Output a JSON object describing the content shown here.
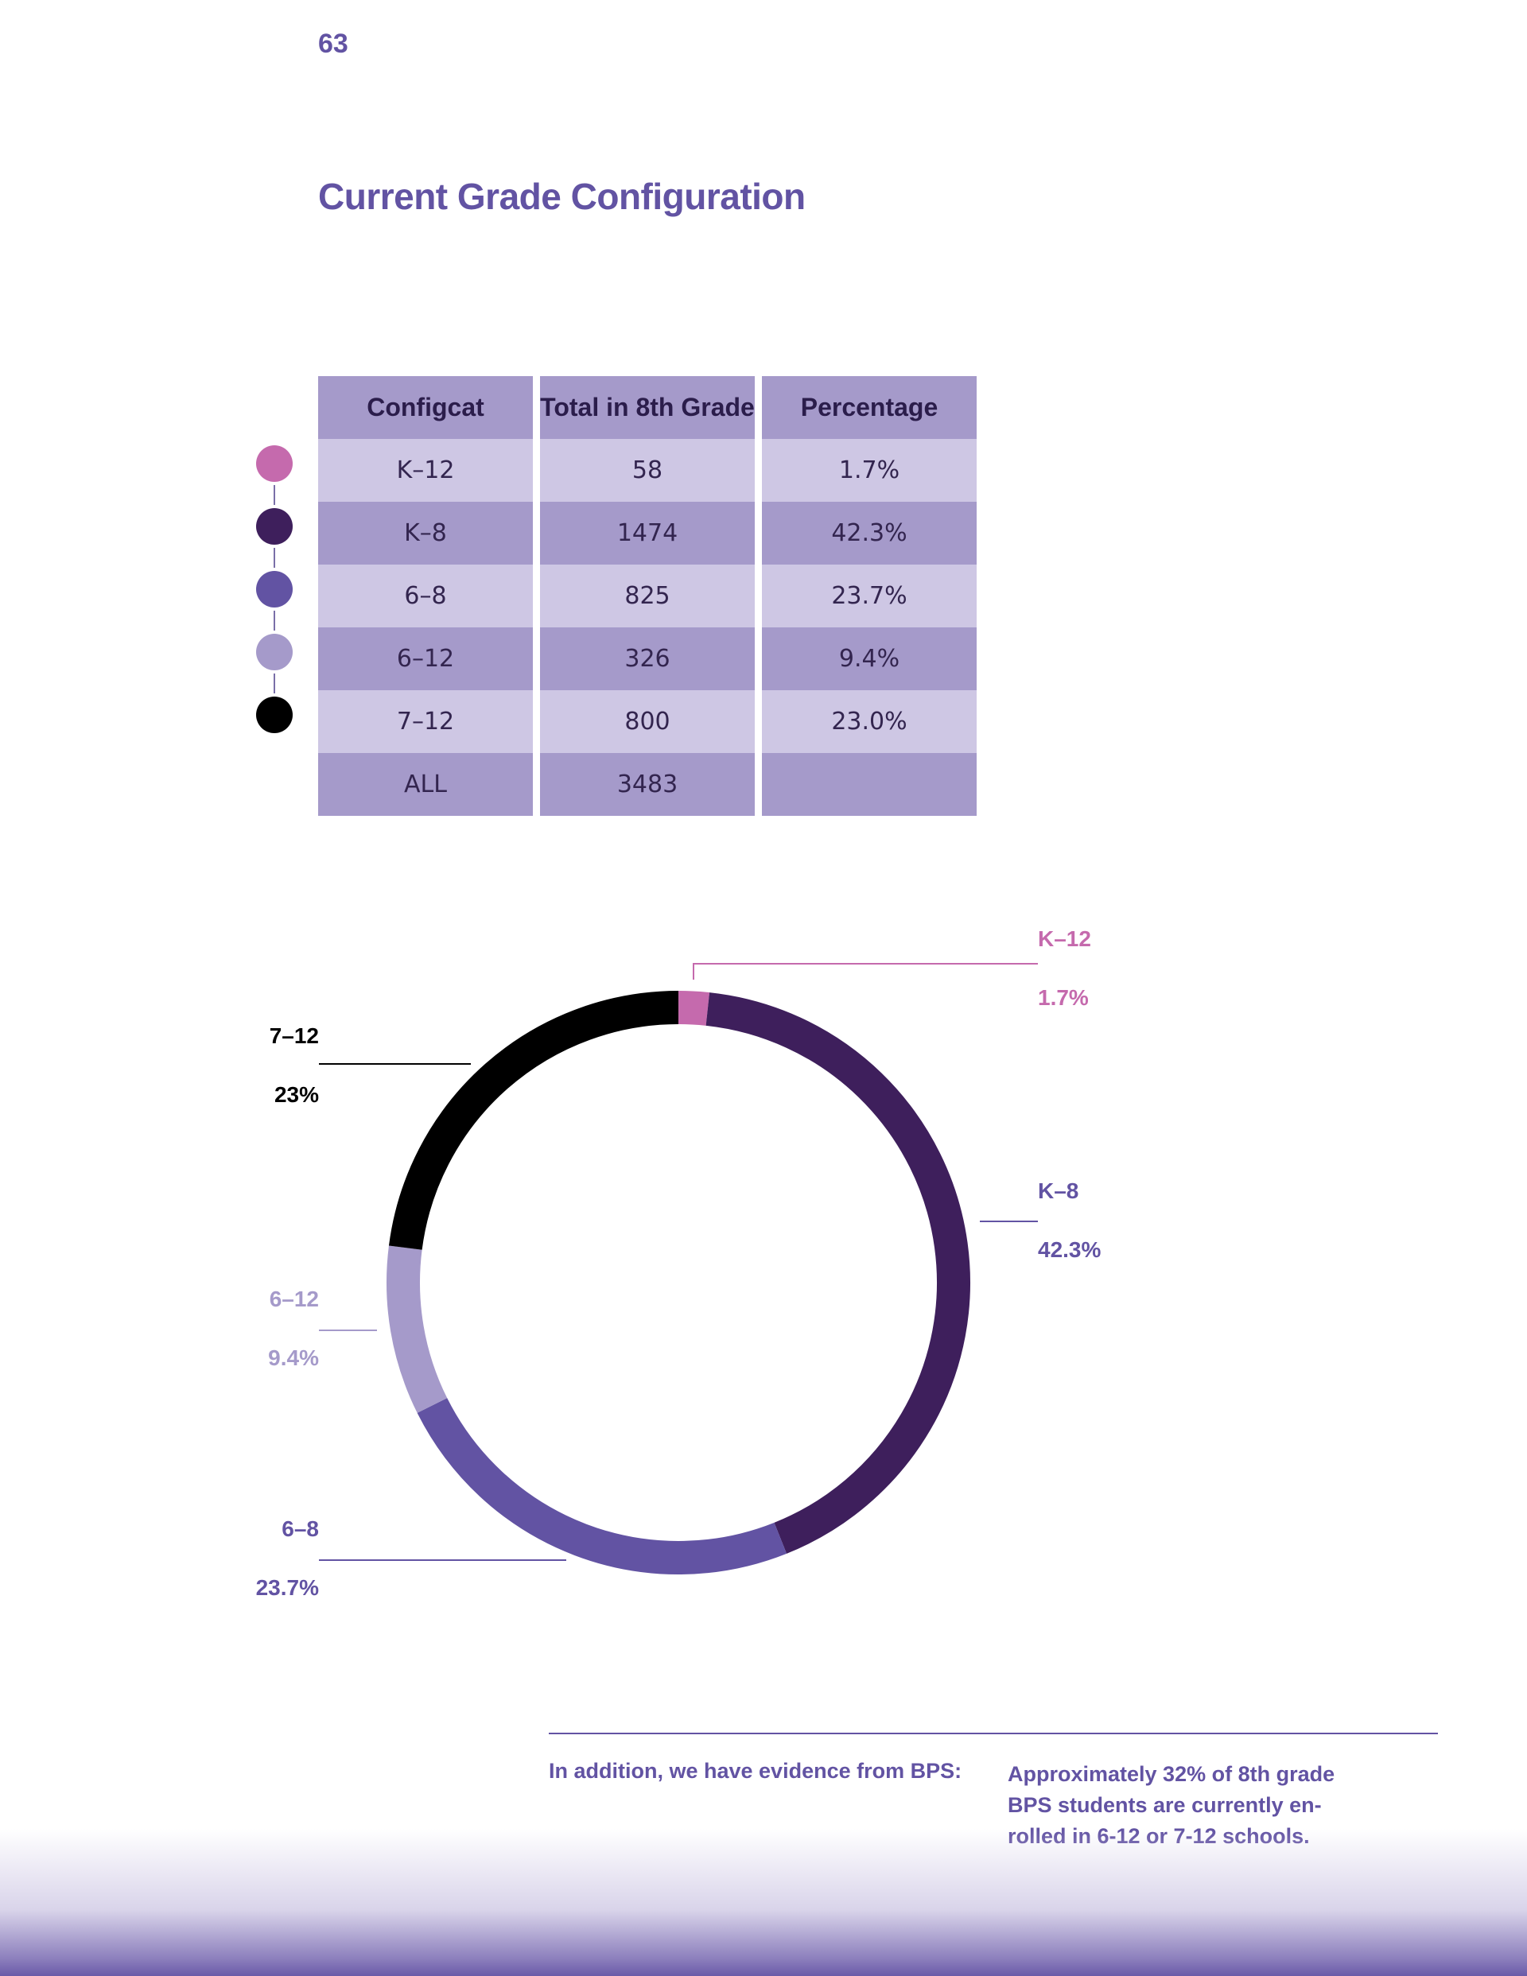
{
  "page": {
    "number": "63",
    "title": "Current Grade Configuration"
  },
  "table": {
    "headers": [
      "Configcat",
      "Total in 8th Grade",
      "Percentage"
    ],
    "rows": [
      {
        "config": "K–12",
        "total": "58",
        "pct": "1.7%",
        "color": "#c56aad"
      },
      {
        "config": "K–8",
        "total": "1474",
        "pct": "42.3%",
        "color": "#3e1f5c"
      },
      {
        "config": "6–8",
        "total": "825",
        "pct": "23.7%",
        "color": "#6253a3"
      },
      {
        "config": "6–12",
        "total": "326",
        "pct": "9.4%",
        "color": "#a59aca"
      },
      {
        "config": "7–12",
        "total": "800",
        "pct": "23.0%",
        "color": "#000000"
      },
      {
        "config": "ALL",
        "total": "3483",
        "pct": ""
      }
    ]
  },
  "chart_data": {
    "type": "pie",
    "style": "donut",
    "start_angle_deg": 0,
    "direction": "clockwise",
    "slices": [
      {
        "label": "K–12",
        "value": 1.7,
        "display": "1.7%",
        "color": "#c56aad",
        "label_color": "#c56aad"
      },
      {
        "label": "K–8",
        "value": 42.3,
        "display": "42.3%",
        "color": "#3e1f5c",
        "label_color": "#6253a3"
      },
      {
        "label": "6–8",
        "value": 23.7,
        "display": "23.7%",
        "color": "#6253a3",
        "label_color": "#6253a3"
      },
      {
        "label": "6–12",
        "value": 9.4,
        "display": "9.4%",
        "color": "#a59aca",
        "label_color": "#a59aca"
      },
      {
        "label": "7–12",
        "value": 23.0,
        "display": "23%",
        "color": "#000000",
        "label_color": "#000000"
      }
    ]
  },
  "footer": {
    "lead": "In addition, we have evidence from BPS:",
    "note_lines": [
      "Approximately 32% of 8th grade",
      "BPS students are currently en-",
      "rolled in 6-12 or 7-12 schools."
    ]
  }
}
